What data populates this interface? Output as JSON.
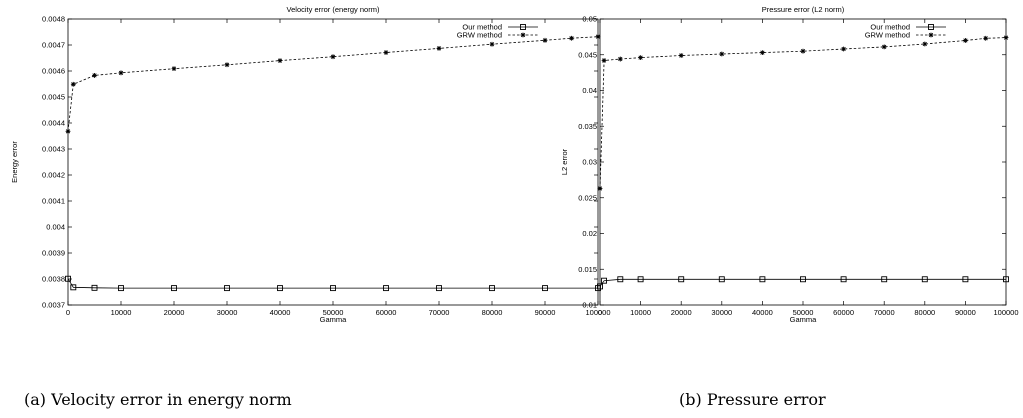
{
  "chart_data": [
    {
      "type": "line",
      "title": "Velocity error (energy norm)",
      "xlabel": "Gamma",
      "ylabel": "Energy error",
      "xlim": [
        0,
        100000
      ],
      "ylim": [
        0.0037,
        0.0048
      ],
      "x_ticks": [
        "0",
        "10000",
        "20000",
        "30000",
        "40000",
        "50000",
        "60000",
        "70000",
        "80000",
        "90000",
        "100000"
      ],
      "y_ticks": [
        "0.0037",
        "0.0038",
        "0.0039",
        "0.004",
        "0.0041",
        "0.0042",
        "0.0043",
        "0.0044",
        "0.0045",
        "0.0046",
        "0.0047",
        "0.0048"
      ],
      "legend_position": "top-right",
      "grid": false,
      "series": [
        {
          "name": "Our method",
          "marker": "square",
          "line": "solid",
          "x": [
            0,
            1000,
            5000,
            10000,
            20000,
            30000,
            40000,
            50000,
            60000,
            70000,
            80000,
            90000,
            100000
          ],
          "y": [
            0.003801,
            0.003768,
            0.003766,
            0.003765,
            0.003765,
            0.003765,
            0.003765,
            0.003765,
            0.003765,
            0.003765,
            0.003765,
            0.003765,
            0.003765
          ]
        },
        {
          "name": "GRW method",
          "marker": "star",
          "line": "dashed",
          "x": [
            0,
            1000,
            5000,
            10000,
            20000,
            30000,
            40000,
            50000,
            60000,
            70000,
            80000,
            90000,
            95000,
            100000
          ],
          "y": [
            0.004368,
            0.004549,
            0.004583,
            0.004593,
            0.004609,
            0.004624,
            0.00464,
            0.004655,
            0.004671,
            0.004687,
            0.004703,
            0.004718,
            0.004726,
            0.004732
          ]
        }
      ],
      "caption": "(a)  Velocity error in energy norm"
    },
    {
      "type": "line",
      "title": "Pressure error (L2 norm)",
      "xlabel": "Gamma",
      "ylabel": "L2 error",
      "xlim": [
        0,
        100000
      ],
      "ylim": [
        0.01,
        0.05
      ],
      "x_ticks": [
        "0",
        "10000",
        "20000",
        "30000",
        "40000",
        "50000",
        "60000",
        "70000",
        "80000",
        "90000",
        "100000"
      ],
      "y_ticks": [
        "0.01",
        "0.015",
        "0.02",
        "0.025",
        "0.03",
        "0.035",
        "0.04",
        "0.045",
        "0.05"
      ],
      "legend_position": "top-right",
      "grid": false,
      "series": [
        {
          "name": "Our method",
          "marker": "square",
          "line": "solid",
          "x": [
            0,
            1000,
            5000,
            10000,
            20000,
            30000,
            40000,
            50000,
            60000,
            70000,
            80000,
            90000,
            100000
          ],
          "y": [
            0.0126,
            0.0134,
            0.0136,
            0.0136,
            0.0136,
            0.0136,
            0.0136,
            0.0136,
            0.0136,
            0.0136,
            0.0136,
            0.0136,
            0.0136
          ]
        },
        {
          "name": "GRW method",
          "marker": "star",
          "line": "dashed",
          "x": [
            0,
            1000,
            5000,
            10000,
            20000,
            30000,
            40000,
            50000,
            60000,
            70000,
            80000,
            90000,
            95000,
            100000
          ],
          "y": [
            0.0263,
            0.0442,
            0.0444,
            0.0446,
            0.0449,
            0.0451,
            0.0453,
            0.0455,
            0.0458,
            0.0461,
            0.0465,
            0.047,
            0.0473,
            0.0474
          ]
        }
      ],
      "caption": "(b)  Pressure error"
    }
  ]
}
